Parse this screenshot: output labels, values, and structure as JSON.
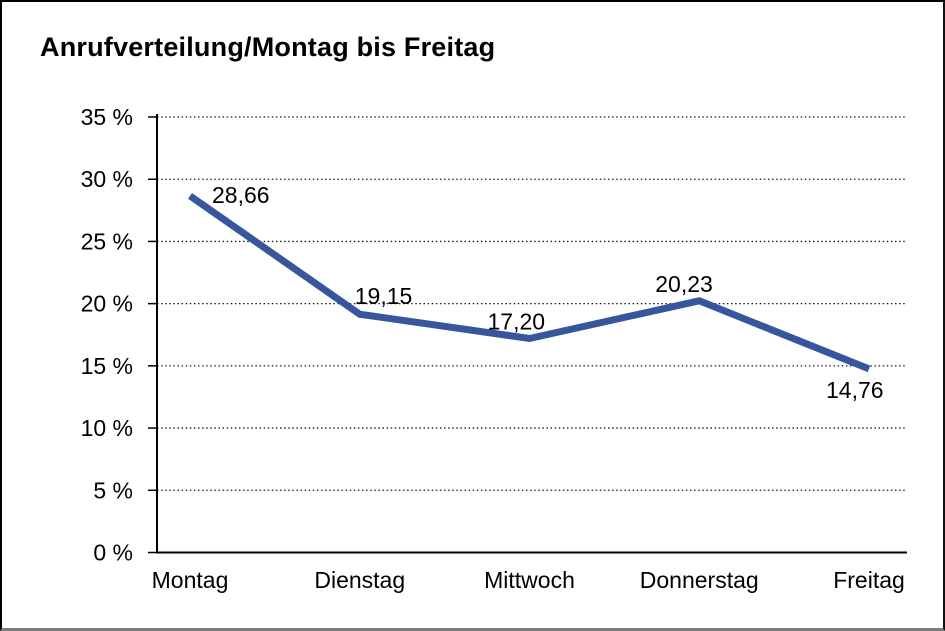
{
  "title": "Anrufverteilung/Montag bis Freitag",
  "colors": {
    "line": "#38569E",
    "grid": "#1a1a1a",
    "axis": "#000000",
    "text": "#000000",
    "background": "#ffffff",
    "border": "#000000"
  },
  "chart_data": {
    "type": "line",
    "title": "Anrufverteilung/Montag bis Freitag",
    "categories": [
      "Montag",
      "Dienstag",
      "Mittwoch",
      "Donnerstag",
      "Freitag"
    ],
    "series": [
      {
        "name": "Anrufverteilung",
        "values": [
          28.66,
          19.15,
          17.2,
          20.23,
          14.76
        ]
      }
    ],
    "point_labels": [
      "28,66",
      "19,15",
      "17,20",
      "20,23",
      "14,76"
    ],
    "y_tick_labels": [
      "35 %",
      "30 %",
      "25 %",
      "20 %",
      "15 %",
      "10 %",
      "5 %",
      "0 %"
    ],
    "xlabel": "",
    "ylabel": "",
    "ylim": [
      0,
      35
    ],
    "y_step": 5,
    "grid": "horizontal-dotted",
    "legend": "none",
    "markers": "none"
  }
}
